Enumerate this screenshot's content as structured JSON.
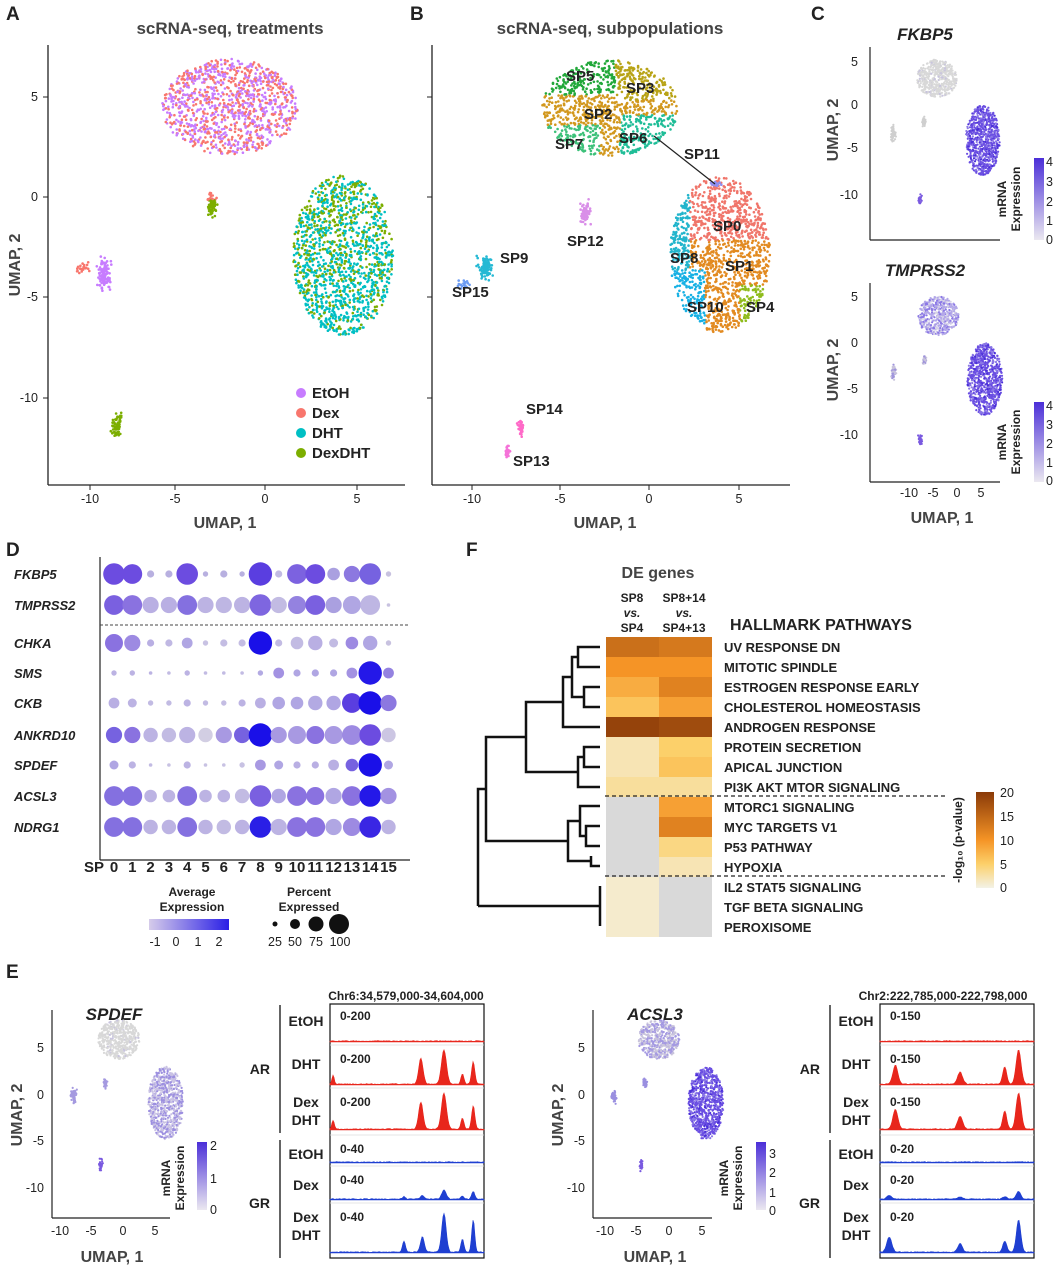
{
  "panels": {
    "A": {
      "letter": "A",
      "title": "scRNA-seq, treatments",
      "xlabel": "UMAP, 1",
      "ylabel": "UMAP, 2",
      "xticks": [
        "-10",
        "-5",
        "0",
        "5"
      ],
      "yticks": [
        "5",
        "0",
        "-5",
        "-10"
      ],
      "legend": [
        {
          "label": "EtOH",
          "color": "#c77cff"
        },
        {
          "label": "Dex",
          "color": "#f8766d"
        },
        {
          "label": "DHT",
          "color": "#00bfc4"
        },
        {
          "label": "DexDHT",
          "color": "#7cae00"
        }
      ]
    },
    "B": {
      "letter": "B",
      "title": "scRNA-seq, subpopulations",
      "xlabel": "UMAP, 1",
      "xticks": [
        "-10",
        "-5",
        "0",
        "5"
      ],
      "subpops": [
        {
          "label": "SP5"
        },
        {
          "label": "SP3"
        },
        {
          "label": "SP2"
        },
        {
          "label": "SP7"
        },
        {
          "label": "SP6"
        },
        {
          "label": "SP11"
        },
        {
          "label": "SP0"
        },
        {
          "label": "SP12"
        },
        {
          "label": "SP9"
        },
        {
          "label": "SP8"
        },
        {
          "label": "SP1"
        },
        {
          "label": "SP15"
        },
        {
          "label": "SP10"
        },
        {
          "label": "SP4"
        },
        {
          "label": "SP14"
        },
        {
          "label": "SP13"
        }
      ]
    },
    "C": {
      "letter": "C",
      "genes": [
        "FKBP5",
        "TMPRSS2"
      ],
      "xlabel": "UMAP, 1",
      "ylabel": "UMAP, 2",
      "xticks": [
        "-10",
        "-5",
        "0",
        "5"
      ],
      "yticks": [
        "5",
        "0",
        "-5",
        "-10"
      ],
      "cbar_title_1": "mRNA",
      "cbar_title_2": "Expression",
      "cbar_ticks": [
        "4",
        "3",
        "2",
        "1",
        "0"
      ]
    },
    "D": {
      "letter": "D",
      "genes": [
        "FKBP5",
        "TMPRSS2",
        "CHKA",
        "SMS",
        "CKB",
        "ANKRD10",
        "SPDEF",
        "ACSL3",
        "NDRG1"
      ],
      "sp_prefix": "SP",
      "sp_numbers": [
        "0",
        "1",
        "2",
        "3",
        "4",
        "5",
        "6",
        "7",
        "8",
        "9",
        "10",
        "11",
        "12",
        "13",
        "14",
        "15"
      ],
      "legend_avg_1": "Average",
      "legend_avg_2": "Expression",
      "avg_ticks": [
        "-1",
        "0",
        "1",
        "2"
      ],
      "legend_pct_1": "Percent",
      "legend_pct_2": "Expressed",
      "pct_ticks": [
        "25",
        "50",
        "75",
        "100"
      ]
    },
    "E": {
      "letter": "E",
      "left_gene": "SPDEF",
      "right_gene": "ACSL3",
      "xlabel": "UMAP, 1",
      "ylabel": "UMAP, 2",
      "xticks": [
        "-10",
        "-5",
        "0",
        "5"
      ],
      "yticks": [
        "5",
        "0",
        "-5",
        "-10"
      ],
      "cbar_title_1": "mRNA",
      "cbar_title_2": "Expression",
      "left_cbar_ticks": [
        "2",
        "1",
        "0"
      ],
      "right_cbar_ticks": [
        "3",
        "2",
        "1",
        "0"
      ],
      "left_region": "Chr6:34,579,000-34,604,000",
      "right_region": "Chr2:222,785,000-222,798,000",
      "group_ar": "AR",
      "group_gr": "GR",
      "left_tracks": [
        {
          "cond1": "EtOH",
          "cond2": "",
          "range": "0-200",
          "color": "#e8261c"
        },
        {
          "cond1": "DHT",
          "cond2": "",
          "range": "0-200",
          "color": "#e8261c"
        },
        {
          "cond1": "Dex",
          "cond2": "DHT",
          "range": "0-200",
          "color": "#e8261c"
        },
        {
          "cond1": "EtOH",
          "cond2": "",
          "range": "0-40",
          "color": "#1f3fd1"
        },
        {
          "cond1": "Dex",
          "cond2": "",
          "range": "0-40",
          "color": "#1f3fd1"
        },
        {
          "cond1": "Dex",
          "cond2": "DHT",
          "range": "0-40",
          "color": "#1f3fd1"
        }
      ],
      "right_tracks": [
        {
          "cond1": "EtOH",
          "cond2": "",
          "range": "0-150",
          "color": "#e8261c"
        },
        {
          "cond1": "DHT",
          "cond2": "",
          "range": "0-150",
          "color": "#e8261c"
        },
        {
          "cond1": "Dex",
          "cond2": "DHT",
          "range": "0-150",
          "color": "#e8261c"
        },
        {
          "cond1": "EtOH",
          "cond2": "",
          "range": "0-20",
          "color": "#1f3fd1"
        },
        {
          "cond1": "Dex",
          "cond2": "",
          "range": "0-20",
          "color": "#1f3fd1"
        },
        {
          "cond1": "Dex",
          "cond2": "DHT",
          "range": "0-20",
          "color": "#1f3fd1"
        }
      ]
    },
    "F": {
      "letter": "F",
      "de_title": "DE genes",
      "col1": [
        "SP8",
        "vs.",
        "SP4"
      ],
      "col2": [
        "SP8+14",
        "vs.",
        "SP4+13"
      ],
      "hallmark_title": "HALLMARK PATHWAYS",
      "cbar_label": "-log₁₀ (p-value)",
      "cbar_ticks": [
        "20",
        "15",
        "10",
        "5",
        "0"
      ]
    }
  },
  "chart_data": {
    "type": "heatmap",
    "rows": [
      "UV RESPONSE DN",
      "MITOTIC SPINDLE",
      "ESTROGEN RESPONSE EARLY",
      "CHOLESTEROL HOMEOSTASIS",
      "ANDROGEN RESPONSE",
      "PROTEIN SECRETION",
      "APICAL JUNCTION",
      "PI3K AKT MTOR SIGNALING",
      "MTORC1 SIGNALING",
      "MYC TARGETS V1",
      "P53 PATHWAY",
      "HYPOXIA",
      "IL2 STAT5 SIGNALING",
      "TGF BETA SIGNALING",
      "PEROXISOME"
    ],
    "columns": [
      "SP8 vs. SP4",
      "SP8+14 vs. SP4+13"
    ],
    "values": [
      [
        14,
        13
      ],
      [
        10,
        10
      ],
      [
        8,
        12
      ],
      [
        6,
        9
      ],
      [
        19,
        18
      ],
      [
        2,
        5
      ],
      [
        2,
        6
      ],
      [
        3,
        3
      ],
      [
        null,
        9
      ],
      [
        null,
        12
      ],
      [
        null,
        4
      ],
      [
        null,
        2
      ],
      [
        1,
        null
      ],
      [
        1,
        null
      ],
      [
        1,
        null
      ]
    ],
    "color_range": [
      0,
      20
    ],
    "na_color": "#d9d9d9"
  }
}
